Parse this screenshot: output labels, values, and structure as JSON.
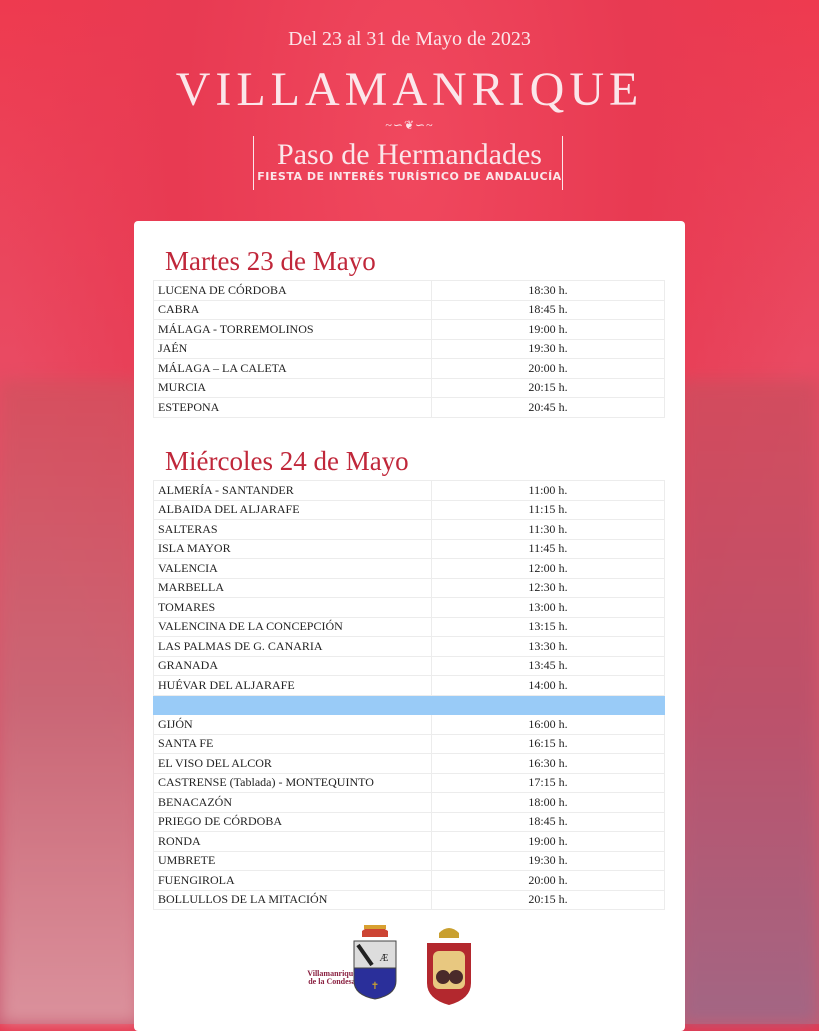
{
  "header": {
    "dates": "Del 23 al 31 de Mayo de 2023",
    "town": "VILLAMANRIQUE",
    "ornament": "~∽❦∽~",
    "title": "Paso de Hermandades",
    "subtitle": "FIESTA DE INTERÉS TURÍSTICO DE ANDALUCÍA"
  },
  "days": [
    {
      "title": "Martes 23 de Mayo",
      "rows": [
        [
          "LUCENA DE CÓRDOBA",
          "18:30 h."
        ],
        [
          "CABRA",
          "18:45 h."
        ],
        [
          "MÁLAGA - TORREMOLINOS",
          "19:00 h."
        ],
        [
          "JAÉN",
          "19:30 h."
        ],
        [
          "MÁLAGA – LA CALETA",
          "20:00 h."
        ],
        [
          "MURCIA",
          "20:15 h."
        ],
        [
          "ESTEPONA",
          "20:45 h."
        ]
      ]
    },
    {
      "title": "Miércoles 24 de Mayo",
      "rows": [
        [
          "ALMERÍA - SANTANDER",
          "11:00 h."
        ],
        [
          "ALBAIDA DEL ALJARAFE",
          "11:15 h."
        ],
        [
          "SALTERAS",
          "11:30 h."
        ],
        [
          "ISLA MAYOR",
          "11:45 h."
        ],
        [
          "VALENCIA",
          "12:00 h."
        ],
        [
          "MARBELLA",
          "12:30 h."
        ],
        [
          "TOMARES",
          "13:00 h."
        ],
        [
          "VALENCINA DE LA CONCEPCIÓN",
          "13:15 h."
        ],
        [
          "LAS PALMAS DE G. CANARIA",
          "13:30 h."
        ],
        [
          "GRANADA",
          "13:45 h."
        ],
        [
          "HUÉVAR DEL ALJARAFE",
          "14:00 h."
        ],
        [
          "",
          ""
        ],
        [
          "GIJÓN",
          "16:00 h."
        ],
        [
          "SANTA FE",
          "16:15 h."
        ],
        [
          "EL VISO DEL ALCOR",
          "16:30 h."
        ],
        [
          "CASTRENSE (Tablada) - MONTEQUINTO",
          "17:15 h."
        ],
        [
          "BENACAZÓN",
          "18:00 h."
        ],
        [
          "PRIEGO DE CÓRDOBA",
          "18:45 h."
        ],
        [
          "RONDA",
          "19:00 h."
        ],
        [
          "UMBRETE",
          "19:30 h."
        ],
        [
          "FUENGIROLA",
          "20:00 h."
        ],
        [
          "BOLLULLOS DE LA MITACIÓN",
          "20:15 h."
        ]
      ]
    }
  ],
  "logos": {
    "town_logo": "Villamanrique de la Condesa"
  },
  "colors": {
    "accent": "#c0273a",
    "highlight_row": "#99cbf7",
    "background": "#e8364e"
  }
}
